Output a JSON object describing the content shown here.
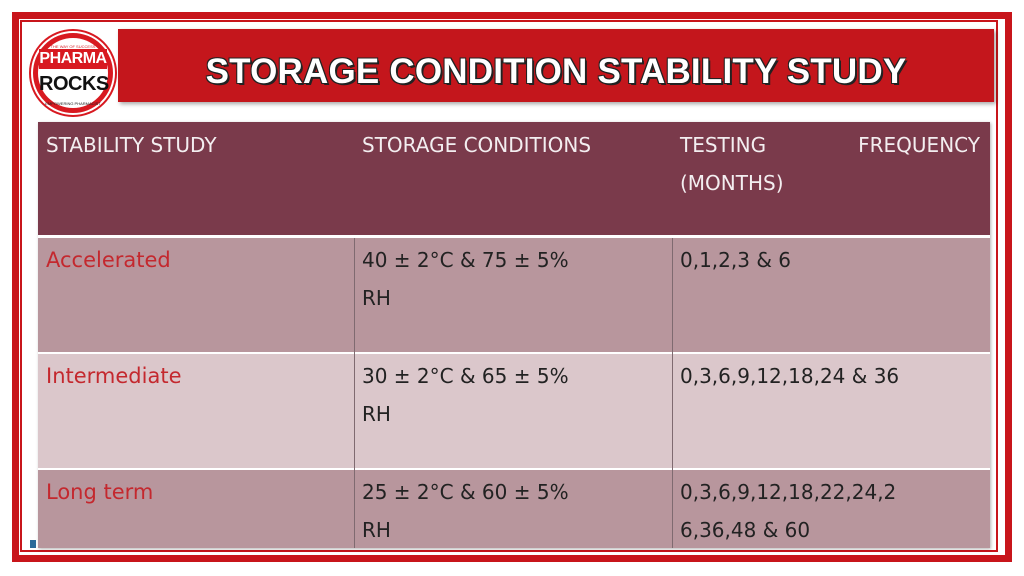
{
  "logo": {
    "tagline": "THE WAY OF SUCCESS",
    "word_top": "PHARMA",
    "word_bottom": "ROCKS",
    "subtitle": "EMPOWERING PHARMACIST"
  },
  "banner": {
    "title": "STORAGE CONDITION STABILITY STUDY"
  },
  "table": {
    "headers": {
      "study": "STABILITY STUDY",
      "conditions": "STORAGE CONDITIONS",
      "testing_word1": "TESTING",
      "testing_word2": "FREQUENCY",
      "testing_word3": "(MONTHS)"
    },
    "rows": [
      {
        "study": "Accelerated",
        "cond_line1": "40 ± 2°C & 75 ± 5%",
        "cond_line2": "RH",
        "freq_line1": "0,1,2,3 & 6",
        "freq_line2": ""
      },
      {
        "study": "Intermediate",
        "cond_line1": "30 ± 2°C & 65 ± 5%",
        "cond_line2": "RH",
        "freq_line1": "0,3,6,9,12,18,24 & 36",
        "freq_line2": ""
      },
      {
        "study": "Long term",
        "cond_line1": "25 ± 2°C & 60 ± 5%",
        "cond_line2": "RH",
        "freq_line1": "0,3,6,9,12,18,22,24,2",
        "freq_line2": "6,36,48 & 60"
      }
    ]
  },
  "colors": {
    "frame_red": "#c8151b",
    "banner_red": "#c4161c",
    "header_maroon": "#7a3a4b",
    "row_dark": "#b8969d",
    "row_light": "#dbc7cb",
    "study_text_red": "#c4282e"
  }
}
